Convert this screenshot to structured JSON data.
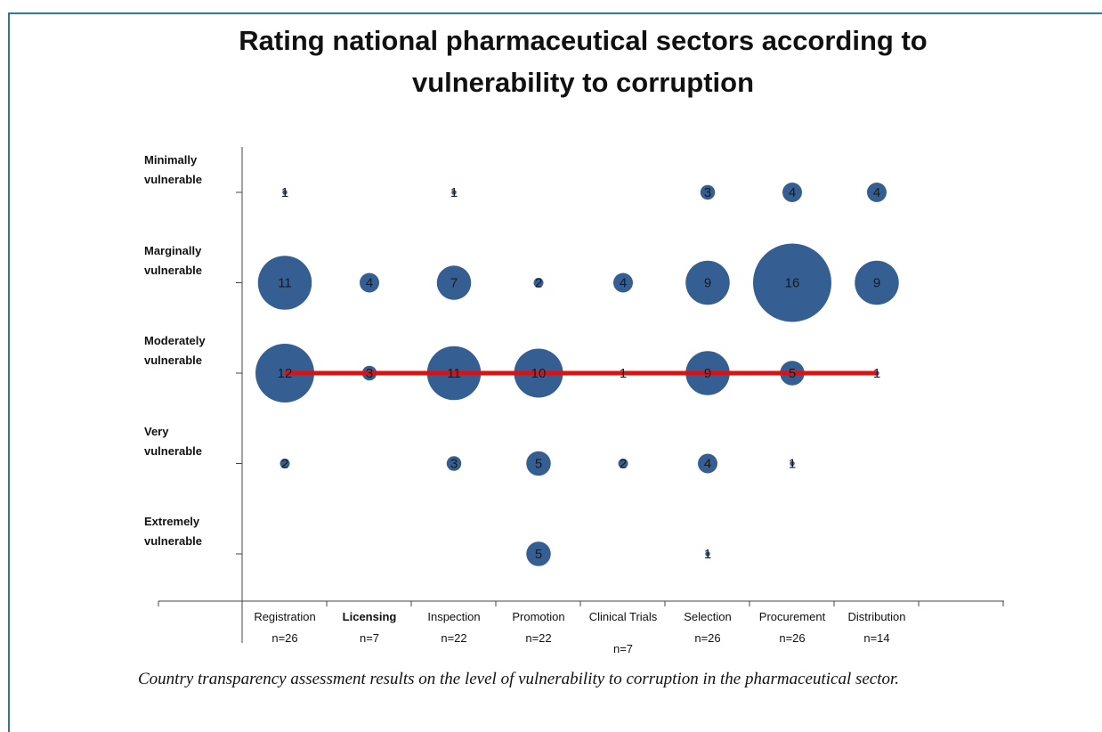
{
  "chart_data": {
    "type": "bubble",
    "title": "Rating national pharmaceutical sectors according to vulnerability to corruption",
    "categories": [
      "Registration",
      "Licensing",
      "Inspection",
      "Promotion",
      "Clinical Trials",
      "Selection",
      "Procurement",
      "Distribution"
    ],
    "n_labels": [
      "n=26",
      "n=7",
      "n=22",
      "n=22",
      "n=7",
      "n=26",
      "n=26",
      "n=14"
    ],
    "levels": [
      "Minimally vulnerable",
      "Marginally vulnerable",
      "Moderately vulnerable",
      "Very vulnerable",
      "Extremely vulnerable"
    ],
    "color": "#355f93",
    "series": [
      {
        "name": "Minimally vulnerable",
        "values": [
          1,
          null,
          1,
          null,
          null,
          3,
          4,
          4
        ]
      },
      {
        "name": "Marginally vulnerable",
        "values": [
          11,
          4,
          7,
          2,
          4,
          9,
          16,
          9
        ]
      },
      {
        "name": "Moderately vulnerable",
        "values": [
          12,
          3,
          11,
          10,
          1,
          9,
          5,
          1
        ]
      },
      {
        "name": "Very vulnerable",
        "values": [
          2,
          null,
          3,
          5,
          2,
          4,
          1,
          null
        ]
      },
      {
        "name": "Extremely vulnerable",
        "values": [
          null,
          null,
          null,
          5,
          null,
          1,
          null,
          null
        ]
      }
    ],
    "reference_line": {
      "level": "Moderately vulnerable",
      "color": "#e01010"
    },
    "caption": "Country transparency assessment results on the level of vulnerability to corruption in the pharmaceutical sector."
  }
}
